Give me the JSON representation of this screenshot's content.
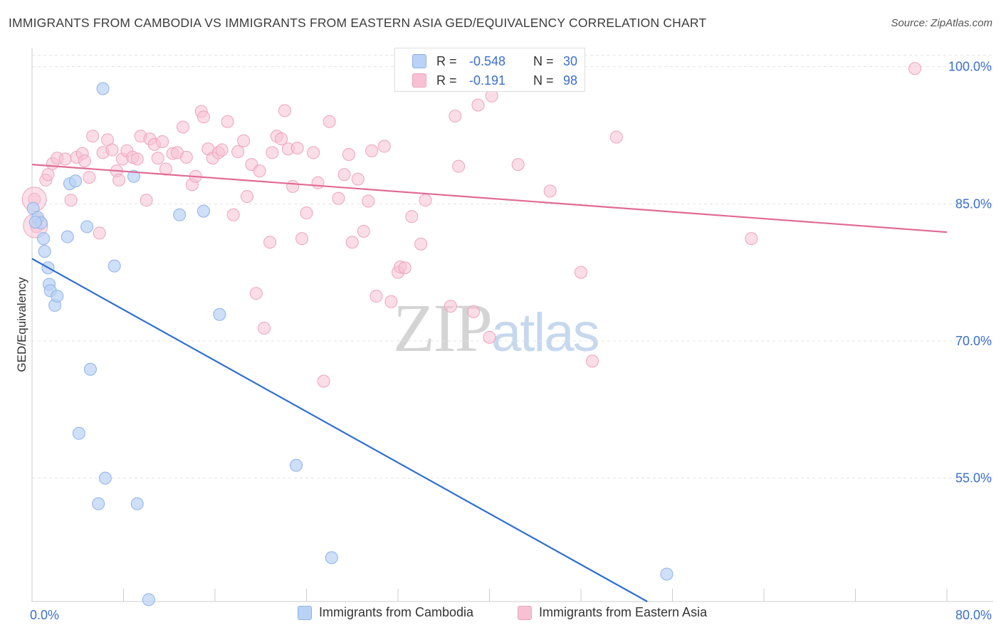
{
  "title": "IMMIGRANTS FROM CAMBODIA VS IMMIGRANTS FROM EASTERN ASIA GED/EQUIVALENCY CORRELATION CHART",
  "source": "Source: ZipAtlas.com",
  "watermark": {
    "zip": "ZIP",
    "atlas": "atlas"
  },
  "colors": {
    "cambodia_fill": "#b9d2f5",
    "cambodia_stroke": "#8fb2e8",
    "cambodia_line": "#2f6fd0",
    "easternasia_fill": "#f7c1d3",
    "easternasia_stroke": "#eda3bd",
    "easternasia_line": "#e06b95",
    "tick_label": "#3a6fcf",
    "grid": "#e3e3e3"
  },
  "stats": {
    "row1": {
      "r_label": "R =",
      "r_value": "-0.548",
      "n_label": "N =",
      "n_value": "30"
    },
    "row2": {
      "r_label": "R =",
      "r_value": "-0.191",
      "n_label": "N =",
      "n_value": "98"
    }
  },
  "legend": {
    "cambodia": "Immigrants from Cambodia",
    "easternasia": "Immigrants from Eastern Asia"
  },
  "chart_data": {
    "type": "scatter",
    "title": "IMMIGRANTS FROM CAMBODIA VS IMMIGRANTS FROM EASTERN ASIA GED/EQUIVALENCY CORRELATION CHART",
    "xlabel": "",
    "ylabel": "GED/Equivalency",
    "xlim": [
      0,
      80
    ],
    "ylim": [
      41.5,
      102
    ],
    "x_tick_labels": [
      "0.0%",
      "80.0%"
    ],
    "y_ticks": [
      55,
      70,
      85,
      100
    ],
    "y_tick_labels": [
      "55.0%",
      "70.0%",
      "85.0%",
      "100.0%"
    ],
    "grid": true,
    "series": [
      {
        "name": "Immigrants from Cambodia",
        "points": [
          [
            0.1,
            84.5
          ],
          [
            0.5,
            83.5
          ],
          [
            0.8,
            82.9
          ],
          [
            1.0,
            81.2
          ],
          [
            1.1,
            79.8
          ],
          [
            1.4,
            78.0
          ],
          [
            1.5,
            76.2
          ],
          [
            1.6,
            75.5
          ],
          [
            2.0,
            73.9
          ],
          [
            2.2,
            74.9
          ],
          [
            3.1,
            81.4
          ],
          [
            3.3,
            87.2
          ],
          [
            3.8,
            87.5
          ],
          [
            4.8,
            82.5
          ],
          [
            6.2,
            97.6
          ],
          [
            7.2,
            78.2
          ],
          [
            8.9,
            88.0
          ],
          [
            12.9,
            83.8
          ],
          [
            15.0,
            84.2
          ],
          [
            16.4,
            72.9
          ],
          [
            5.1,
            66.9
          ],
          [
            4.1,
            59.9
          ],
          [
            6.4,
            55.0
          ],
          [
            5.8,
            52.2
          ],
          [
            9.2,
            52.2
          ],
          [
            23.1,
            56.4
          ],
          [
            26.2,
            46.3
          ],
          [
            10.2,
            41.7
          ],
          [
            55.5,
            44.5
          ],
          [
            0.3,
            83.0
          ]
        ],
        "trend": {
          "x": [
            0,
            53.8
          ],
          "y": [
            79.0,
            41.5
          ]
        }
      },
      {
        "name": "Immigrants from Eastern Asia",
        "points": [
          [
            0.2,
            85.5
          ],
          [
            0.4,
            82.5
          ],
          [
            1.2,
            87.6
          ],
          [
            1.4,
            88.2
          ],
          [
            1.8,
            89.4
          ],
          [
            2.2,
            90.0
          ],
          [
            2.9,
            89.9
          ],
          [
            3.4,
            85.4
          ],
          [
            3.9,
            90.1
          ],
          [
            4.4,
            90.5
          ],
          [
            4.6,
            89.7
          ],
          [
            5.0,
            87.9
          ],
          [
            5.3,
            92.4
          ],
          [
            5.9,
            81.8
          ],
          [
            6.2,
            90.6
          ],
          [
            6.6,
            92.0
          ],
          [
            7.0,
            90.9
          ],
          [
            7.4,
            88.6
          ],
          [
            7.6,
            87.6
          ],
          [
            7.9,
            89.9
          ],
          [
            8.3,
            90.8
          ],
          [
            8.8,
            90.1
          ],
          [
            9.2,
            89.9
          ],
          [
            9.5,
            92.4
          ],
          [
            10.0,
            85.4
          ],
          [
            10.3,
            92.1
          ],
          [
            10.7,
            91.5
          ],
          [
            11.0,
            90.0
          ],
          [
            11.4,
            91.8
          ],
          [
            11.7,
            88.8
          ],
          [
            12.3,
            90.5
          ],
          [
            12.7,
            90.6
          ],
          [
            13.2,
            93.4
          ],
          [
            13.5,
            90.1
          ],
          [
            14.0,
            87.1
          ],
          [
            14.3,
            88.0
          ],
          [
            14.8,
            95.1
          ],
          [
            15.0,
            94.5
          ],
          [
            15.4,
            91.0
          ],
          [
            15.8,
            90.0
          ],
          [
            16.3,
            90.6
          ],
          [
            16.6,
            90.9
          ],
          [
            17.1,
            94.0
          ],
          [
            17.6,
            83.8
          ],
          [
            18.0,
            90.7
          ],
          [
            18.5,
            91.9
          ],
          [
            18.8,
            85.8
          ],
          [
            19.2,
            89.3
          ],
          [
            19.6,
            75.2
          ],
          [
            19.9,
            88.6
          ],
          [
            20.3,
            71.4
          ],
          [
            20.8,
            80.8
          ],
          [
            21.0,
            90.6
          ],
          [
            21.4,
            92.4
          ],
          [
            21.8,
            92.1
          ],
          [
            22.1,
            95.2
          ],
          [
            22.4,
            91.0
          ],
          [
            22.8,
            86.9
          ],
          [
            23.2,
            91.1
          ],
          [
            23.6,
            81.2
          ],
          [
            24.0,
            84.0
          ],
          [
            24.6,
            90.6
          ],
          [
            25.0,
            87.3
          ],
          [
            25.5,
            65.6
          ],
          [
            26.0,
            94.0
          ],
          [
            26.8,
            85.6
          ],
          [
            27.3,
            88.2
          ],
          [
            27.7,
            90.4
          ],
          [
            28.0,
            80.8
          ],
          [
            28.5,
            87.7
          ],
          [
            29.0,
            82.0
          ],
          [
            29.4,
            85.3
          ],
          [
            29.7,
            90.8
          ],
          [
            30.1,
            74.9
          ],
          [
            30.8,
            91.3
          ],
          [
            31.4,
            74.3
          ],
          [
            32.0,
            77.5
          ],
          [
            32.2,
            78.1
          ],
          [
            32.6,
            78.0
          ],
          [
            33.2,
            83.6
          ],
          [
            34.0,
            80.6
          ],
          [
            34.4,
            85.4
          ],
          [
            36.6,
            73.8
          ],
          [
            37.3,
            89.1
          ],
          [
            38.6,
            73.2
          ],
          [
            39.0,
            95.8
          ],
          [
            40.0,
            70.4
          ],
          [
            42.5,
            89.3
          ],
          [
            45.3,
            86.4
          ],
          [
            48.0,
            77.5
          ],
          [
            49.0,
            67.8
          ],
          [
            51.1,
            92.3
          ],
          [
            62.9,
            81.2
          ],
          [
            77.2,
            99.8
          ],
          [
            38.5,
            100.0
          ],
          [
            42.9,
            100.0
          ],
          [
            40.2,
            96.8
          ],
          [
            37.0,
            94.6
          ]
        ],
        "trend": {
          "x": [
            0,
            80
          ],
          "y": [
            89.3,
            81.9
          ]
        }
      }
    ]
  }
}
